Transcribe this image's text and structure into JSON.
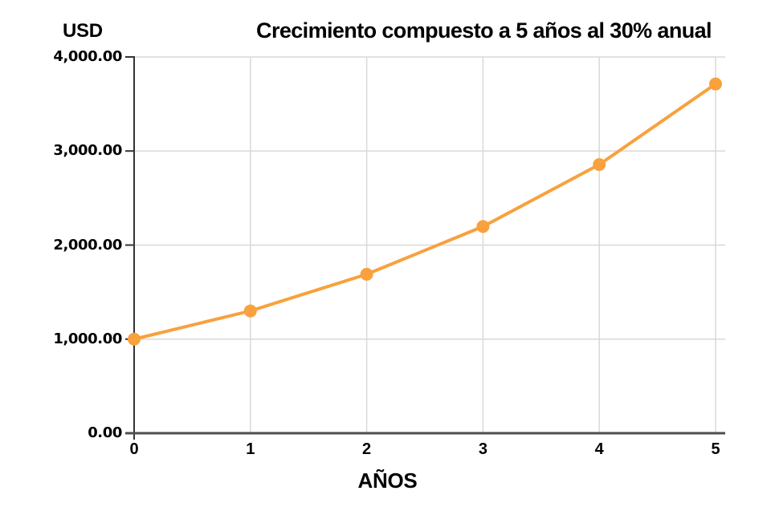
{
  "chart_data": {
    "type": "line",
    "title": "Crecimiento compuesto a 5 años al 30% anual",
    "xlabel": "AÑOS",
    "ylabel": "USD",
    "x": [
      0,
      1,
      2,
      3,
      4,
      5
    ],
    "x_tick_labels": [
      "0",
      "1",
      "2",
      "3",
      "4",
      "5"
    ],
    "y_ticks": [
      0,
      1000,
      2000,
      3000,
      4000
    ],
    "y_tick_labels": [
      "0.00",
      "1,000.00",
      "2,000.00",
      "3,000.00",
      "4,000.00"
    ],
    "ylim": [
      0,
      4000
    ],
    "grid": true,
    "legend": "none",
    "series": [
      {
        "name": "Crecimiento compuesto",
        "color": "#F8A13D",
        "values": [
          1000,
          1300,
          1690,
          2197,
          2856.1,
          3712.93
        ]
      }
    ],
    "colors": {
      "gridline": "#D9D9D9",
      "y_axis": "#333333",
      "x_axis": "#4D4D4D",
      "text": "#000000"
    }
  }
}
